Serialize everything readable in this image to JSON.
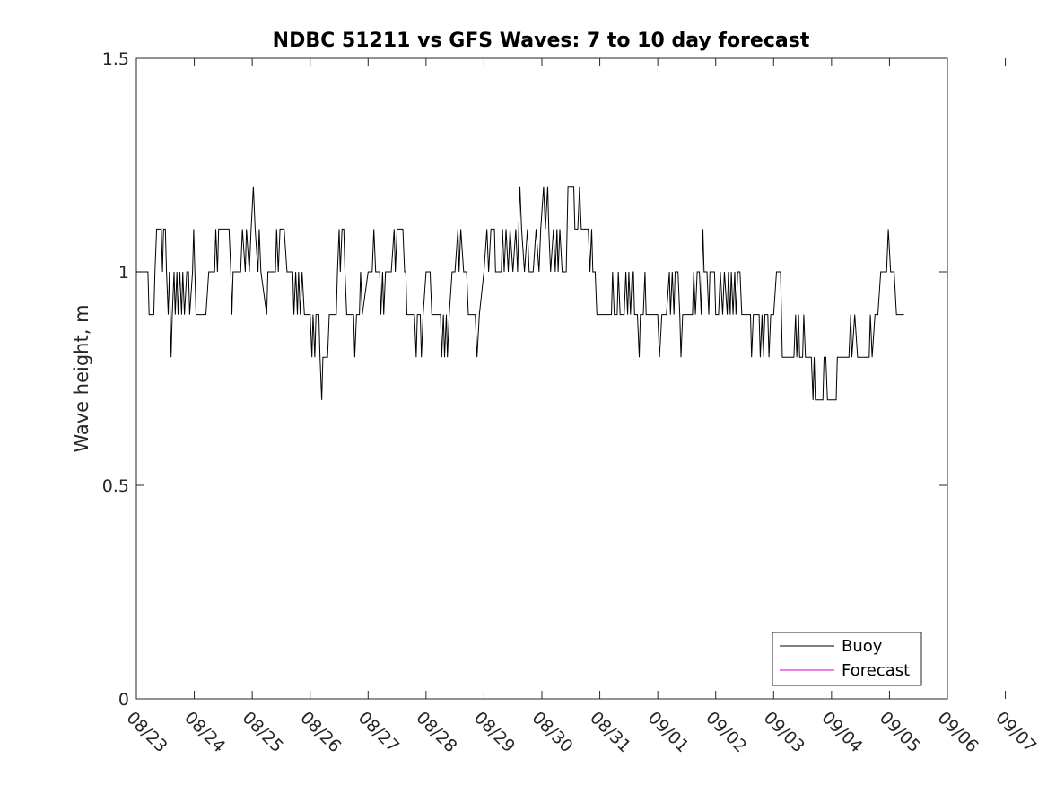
{
  "chart_data": {
    "type": "line",
    "title": "NDBC 51211 vs GFS Waves: 7 to 10 day forecast",
    "xlabel": "",
    "ylabel": "Wave height, m",
    "xlim": [
      0,
      14
    ],
    "ylim": [
      0,
      1.5
    ],
    "x_tick_labels": [
      "08/23",
      "08/24",
      "08/25",
      "08/26",
      "08/27",
      "08/28",
      "08/29",
      "08/30",
      "08/31",
      "09/01",
      "09/02",
      "09/03",
      "09/04",
      "09/05",
      "09/06",
      "09/07"
    ],
    "y_ticks": [
      0,
      0.5,
      1,
      1.5
    ],
    "y_tick_labels": [
      "0",
      "0.5",
      "1",
      "1.5"
    ],
    "x_units": "days since 08/23 00:00",
    "legend": {
      "position": "bottom-right",
      "entries": [
        "Buoy",
        "Forecast"
      ]
    },
    "series": [
      {
        "name": "Buoy",
        "color": "#000000",
        "points": [
          [
            0,
            1.0
          ],
          [
            0.2,
            1.0
          ],
          [
            0.22,
            0.9
          ],
          [
            0.3,
            0.9
          ],
          [
            0.32,
            1.0
          ],
          [
            0.35,
            1.1
          ],
          [
            0.43,
            1.1
          ],
          [
            0.45,
            1.0
          ],
          [
            0.47,
            1.1
          ],
          [
            0.5,
            1.1
          ],
          [
            0.52,
            1.0
          ],
          [
            0.55,
            0.9
          ],
          [
            0.57,
            1.0
          ],
          [
            0.6,
            0.8
          ],
          [
            0.62,
            0.9
          ],
          [
            0.65,
            1.0
          ],
          [
            0.67,
            0.9
          ],
          [
            0.7,
            1.0
          ],
          [
            0.72,
            0.9
          ],
          [
            0.75,
            1.0
          ],
          [
            0.78,
            0.9
          ],
          [
            0.8,
            1.0
          ],
          [
            0.83,
            0.9
          ],
          [
            0.87,
            1.0
          ],
          [
            0.9,
            1.0
          ],
          [
            0.92,
            0.9
          ],
          [
            0.97,
            1.0
          ],
          [
            0.99,
            1.1
          ],
          [
            1.01,
            1.0
          ],
          [
            1.03,
            0.9
          ],
          [
            1.2,
            0.9
          ],
          [
            1.25,
            1.0
          ],
          [
            1.35,
            1.0
          ],
          [
            1.37,
            1.1
          ],
          [
            1.4,
            1.0
          ],
          [
            1.42,
            1.1
          ],
          [
            1.6,
            1.1
          ],
          [
            1.63,
            1.0
          ],
          [
            1.65,
            0.9
          ],
          [
            1.67,
            1.0
          ],
          [
            1.8,
            1.0
          ],
          [
            1.83,
            1.1
          ],
          [
            1.88,
            1.0
          ],
          [
            1.9,
            1.1
          ],
          [
            1.95,
            1.0
          ],
          [
            1.98,
            1.1
          ],
          [
            2.02,
            1.2
          ],
          [
            2.05,
            1.1
          ],
          [
            2.1,
            1.0
          ],
          [
            2.12,
            1.1
          ],
          [
            2.15,
            1.0
          ],
          [
            2.25,
            0.9
          ],
          [
            2.27,
            1.0
          ],
          [
            2.4,
            1.0
          ],
          [
            2.42,
            1.1
          ],
          [
            2.45,
            1.0
          ],
          [
            2.48,
            1.1
          ],
          [
            2.55,
            1.1
          ],
          [
            2.6,
            1.0
          ],
          [
            2.7,
            1.0
          ],
          [
            2.72,
            0.9
          ],
          [
            2.75,
            1.0
          ],
          [
            2.78,
            0.9
          ],
          [
            2.8,
            1.0
          ],
          [
            2.83,
            0.9
          ],
          [
            2.86,
            1.0
          ],
          [
            2.9,
            0.9
          ],
          [
            3.0,
            0.9
          ],
          [
            3.03,
            0.8
          ],
          [
            3.05,
            0.9
          ],
          [
            3.08,
            0.8
          ],
          [
            3.1,
            0.9
          ],
          [
            3.15,
            0.9
          ],
          [
            3.17,
            0.8
          ],
          [
            3.2,
            0.7
          ],
          [
            3.22,
            0.8
          ],
          [
            3.3,
            0.8
          ],
          [
            3.33,
            0.9
          ],
          [
            3.45,
            0.9
          ],
          [
            3.47,
            1.0
          ],
          [
            3.5,
            1.1
          ],
          [
            3.52,
            1.0
          ],
          [
            3.55,
            1.1
          ],
          [
            3.58,
            1.1
          ],
          [
            3.6,
            1.0
          ],
          [
            3.63,
            0.9
          ],
          [
            3.75,
            0.9
          ],
          [
            3.77,
            0.8
          ],
          [
            3.8,
            0.9
          ],
          [
            3.85,
            0.9
          ],
          [
            3.87,
            1.0
          ],
          [
            3.9,
            0.9
          ],
          [
            4.0,
            1.0
          ],
          [
            4.07,
            1.0
          ],
          [
            4.1,
            1.1
          ],
          [
            4.13,
            1.0
          ],
          [
            4.2,
            1.0
          ],
          [
            4.22,
            0.9
          ],
          [
            4.25,
            1.0
          ],
          [
            4.27,
            0.9
          ],
          [
            4.3,
            1.0
          ],
          [
            4.4,
            1.0
          ],
          [
            4.45,
            1.1
          ],
          [
            4.47,
            1.0
          ],
          [
            4.5,
            1.1
          ],
          [
            4.6,
            1.1
          ],
          [
            4.63,
            1.0
          ],
          [
            4.65,
            1.0
          ],
          [
            4.67,
            0.9
          ],
          [
            4.8,
            0.9
          ],
          [
            4.83,
            0.8
          ],
          [
            4.85,
            0.9
          ],
          [
            4.9,
            0.9
          ],
          [
            4.92,
            0.8
          ],
          [
            4.95,
            0.9
          ],
          [
            5.0,
            1.0
          ],
          [
            5.07,
            1.0
          ],
          [
            5.1,
            0.9
          ],
          [
            5.25,
            0.9
          ],
          [
            5.27,
            0.8
          ],
          [
            5.3,
            0.9
          ],
          [
            5.32,
            0.8
          ],
          [
            5.35,
            0.9
          ],
          [
            5.37,
            0.8
          ],
          [
            5.4,
            0.9
          ],
          [
            5.45,
            1.0
          ],
          [
            5.5,
            1.0
          ],
          [
            5.55,
            1.1
          ],
          [
            5.57,
            1.0
          ],
          [
            5.6,
            1.1
          ],
          [
            5.65,
            1.0
          ],
          [
            5.7,
            1.0
          ],
          [
            5.73,
            0.9
          ],
          [
            5.85,
            0.9
          ],
          [
            5.88,
            0.8
          ],
          [
            5.92,
            0.9
          ],
          [
            6.0,
            1.0
          ],
          [
            6.05,
            1.1
          ],
          [
            6.08,
            1.0
          ],
          [
            6.12,
            1.1
          ],
          [
            6.18,
            1.1
          ],
          [
            6.2,
            1.0
          ],
          [
            6.3,
            1.0
          ],
          [
            6.32,
            1.1
          ],
          [
            6.35,
            1.0
          ],
          [
            6.38,
            1.1
          ],
          [
            6.42,
            1.0
          ],
          [
            6.45,
            1.1
          ],
          [
            6.5,
            1.0
          ],
          [
            6.55,
            1.1
          ],
          [
            6.58,
            1.0
          ],
          [
            6.62,
            1.2
          ],
          [
            6.65,
            1.1
          ],
          [
            6.7,
            1.0
          ],
          [
            6.75,
            1.1
          ],
          [
            6.78,
            1.0
          ],
          [
            6.85,
            1.0
          ],
          [
            6.9,
            1.1
          ],
          [
            6.95,
            1.0
          ],
          [
            6.98,
            1.1
          ],
          [
            7.03,
            1.2
          ],
          [
            7.06,
            1.1
          ],
          [
            7.1,
            1.2
          ],
          [
            7.12,
            1.1
          ],
          [
            7.15,
            1.0
          ],
          [
            7.2,
            1.1
          ],
          [
            7.23,
            1.0
          ],
          [
            7.26,
            1.1
          ],
          [
            7.28,
            1.0
          ],
          [
            7.31,
            1.1
          ],
          [
            7.35,
            1.0
          ],
          [
            7.42,
            1.0
          ],
          [
            7.45,
            1.2
          ],
          [
            7.55,
            1.2
          ],
          [
            7.57,
            1.1
          ],
          [
            7.62,
            1.1
          ],
          [
            7.65,
            1.2
          ],
          [
            7.68,
            1.1
          ],
          [
            7.8,
            1.1
          ],
          [
            7.83,
            1.0
          ],
          [
            7.86,
            1.1
          ],
          [
            7.88,
            1.0
          ],
          [
            7.92,
            1.0
          ],
          [
            7.95,
            0.9
          ],
          [
            8.2,
            0.9
          ],
          [
            8.22,
            1.0
          ],
          [
            8.25,
            0.9
          ],
          [
            8.3,
            0.9
          ],
          [
            8.32,
            1.0
          ],
          [
            8.35,
            0.9
          ],
          [
            8.42,
            0.9
          ],
          [
            8.45,
            1.0
          ],
          [
            8.48,
            0.9
          ],
          [
            8.5,
            1.0
          ],
          [
            8.53,
            0.9
          ],
          [
            8.56,
            1.0
          ],
          [
            8.58,
            1.0
          ],
          [
            8.6,
            0.9
          ],
          [
            8.65,
            0.9
          ],
          [
            8.68,
            0.8
          ],
          [
            8.7,
            0.9
          ],
          [
            8.75,
            0.9
          ],
          [
            8.78,
            1.0
          ],
          [
            8.8,
            0.9
          ],
          [
            8.83,
            0.9
          ],
          [
            9.0,
            0.9
          ],
          [
            9.03,
            0.8
          ],
          [
            9.07,
            0.9
          ],
          [
            9.15,
            0.9
          ],
          [
            9.2,
            1.0
          ],
          [
            9.22,
            0.9
          ],
          [
            9.25,
            1.0
          ],
          [
            9.28,
            0.9
          ],
          [
            9.3,
            1.0
          ],
          [
            9.35,
            1.0
          ],
          [
            9.38,
            0.9
          ],
          [
            9.4,
            0.8
          ],
          [
            9.43,
            0.9
          ],
          [
            9.6,
            0.9
          ],
          [
            9.62,
            1.0
          ],
          [
            9.65,
            0.9
          ],
          [
            9.68,
            1.0
          ],
          [
            9.72,
            1.0
          ],
          [
            9.75,
            0.9
          ],
          [
            9.78,
            1.1
          ],
          [
            9.8,
            1.0
          ],
          [
            9.85,
            1.0
          ],
          [
            9.88,
            0.9
          ],
          [
            9.9,
            1.0
          ],
          [
            9.95,
            1.0
          ],
          [
            9.98,
            1.0
          ],
          [
            10.0,
            0.9
          ],
          [
            10.05,
            0.9
          ],
          [
            10.08,
            1.0
          ],
          [
            10.12,
            0.9
          ],
          [
            10.15,
            1.0
          ],
          [
            10.2,
            0.9
          ],
          [
            10.22,
            1.0
          ],
          [
            10.25,
            0.9
          ],
          [
            10.27,
            1.0
          ],
          [
            10.3,
            0.9
          ],
          [
            10.33,
            1.0
          ],
          [
            10.35,
            0.9
          ],
          [
            10.38,
            1.0
          ],
          [
            10.42,
            1.0
          ],
          [
            10.45,
            0.9
          ],
          [
            10.6,
            0.9
          ],
          [
            10.62,
            0.8
          ],
          [
            10.65,
            0.9
          ],
          [
            10.75,
            0.9
          ],
          [
            10.77,
            0.8
          ],
          [
            10.8,
            0.9
          ],
          [
            10.82,
            0.8
          ],
          [
            10.85,
            0.9
          ],
          [
            10.9,
            0.9
          ],
          [
            10.92,
            0.8
          ],
          [
            10.95,
            0.9
          ],
          [
            11.0,
            0.9
          ],
          [
            11.05,
            1.0
          ],
          [
            11.12,
            1.0
          ],
          [
            11.15,
            0.8
          ],
          [
            11.35,
            0.8
          ],
          [
            11.38,
            0.9
          ],
          [
            11.4,
            0.8
          ],
          [
            11.43,
            0.9
          ],
          [
            11.45,
            0.8
          ],
          [
            11.5,
            0.8
          ],
          [
            11.52,
            0.9
          ],
          [
            11.55,
            0.8
          ],
          [
            11.65,
            0.8
          ],
          [
            11.68,
            0.7
          ],
          [
            11.7,
            0.8
          ],
          [
            11.72,
            0.7
          ],
          [
            11.85,
            0.7
          ],
          [
            11.87,
            0.8
          ],
          [
            11.9,
            0.8
          ],
          [
            11.93,
            0.7
          ],
          [
            12.08,
            0.7
          ],
          [
            12.1,
            0.8
          ],
          [
            12.3,
            0.8
          ],
          [
            12.33,
            0.9
          ],
          [
            12.35,
            0.8
          ],
          [
            12.4,
            0.9
          ],
          [
            12.45,
            0.8
          ],
          [
            12.65,
            0.8
          ],
          [
            12.67,
            0.9
          ],
          [
            12.7,
            0.8
          ],
          [
            12.75,
            0.9
          ],
          [
            12.8,
            0.9
          ],
          [
            12.85,
            1.0
          ],
          [
            12.95,
            1.0
          ],
          [
            12.98,
            1.1
          ],
          [
            13.02,
            1.0
          ],
          [
            13.08,
            1.0
          ],
          [
            13.12,
            0.9
          ],
          [
            13.25,
            0.9
          ]
        ]
      },
      {
        "name": "Forecast",
        "color": "#cc00cc",
        "points": []
      }
    ]
  }
}
